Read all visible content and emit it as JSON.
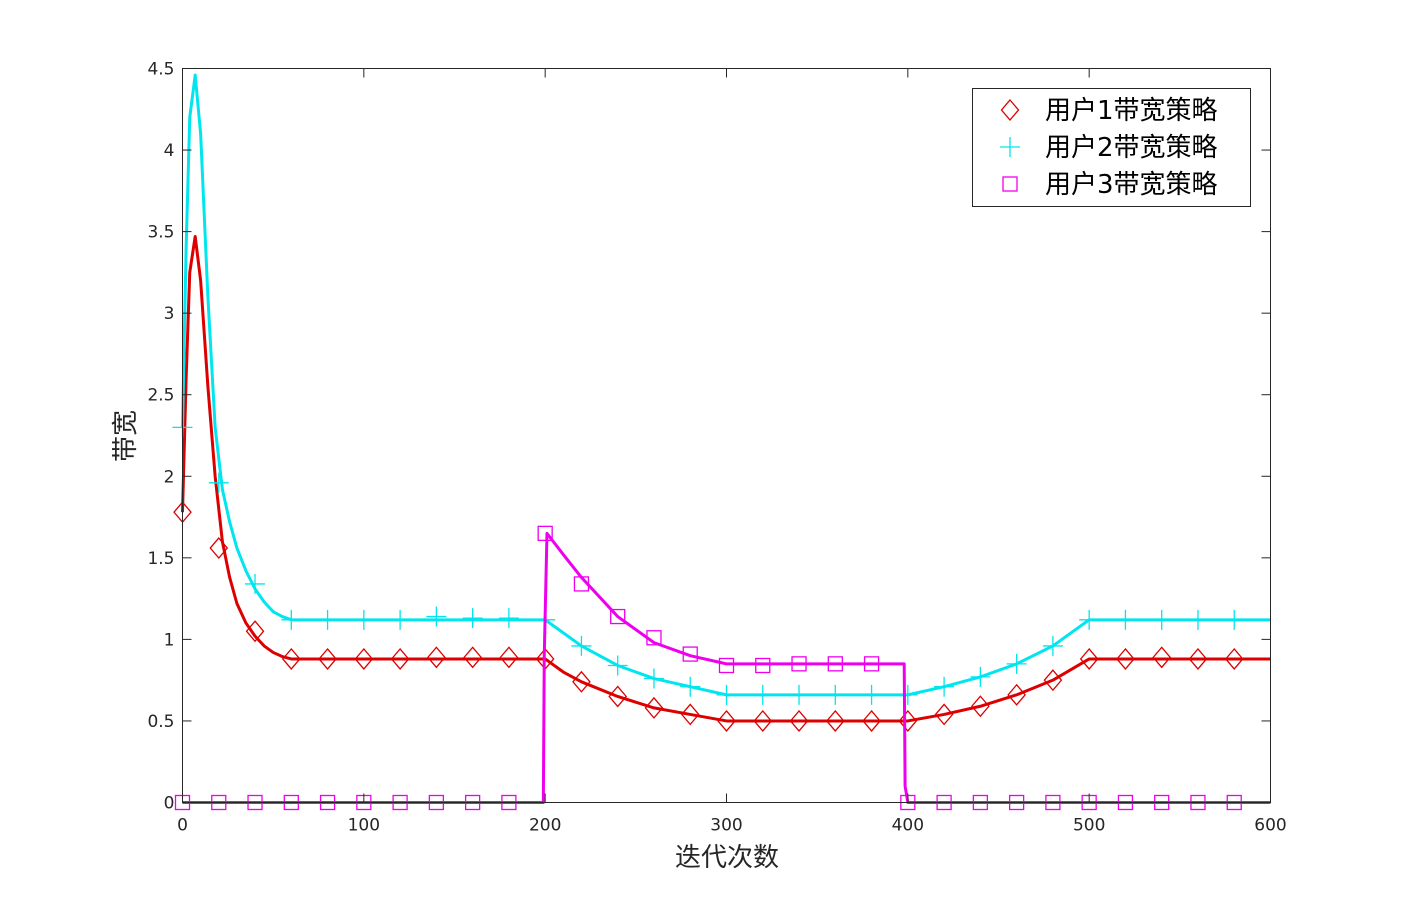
{
  "chart_data": {
    "type": "line",
    "title": "",
    "xlabel": "迭代次数",
    "ylabel": "带宽",
    "xlim": [
      0,
      600
    ],
    "ylim": [
      0,
      4.5
    ],
    "xticks": [
      0,
      100,
      200,
      300,
      400,
      500,
      600
    ],
    "yticks": [
      0,
      0.5,
      1,
      1.5,
      2,
      2.5,
      3,
      3.5,
      4,
      4.5
    ],
    "xtick_labels": [
      "0",
      "100",
      "200",
      "300",
      "400",
      "500",
      "600"
    ],
    "ytick_labels": [
      "0",
      "0.5",
      "1",
      "1.5",
      "2",
      "2.5",
      "3",
      "3.5",
      "4",
      "4.5"
    ],
    "grid": false,
    "legend_position": "top-right",
    "series": [
      {
        "name": "用户1带宽策略",
        "color": "#dd0000",
        "marker": "diamond",
        "x": [
          0,
          2,
          4,
          7,
          10,
          14,
          18,
          22,
          26,
          30,
          35,
          40,
          45,
          50,
          55,
          60,
          100,
          140,
          180,
          200,
          210,
          220,
          240,
          260,
          280,
          300,
          340,
          380,
          400,
          420,
          440,
          460,
          480,
          500,
          540,
          580,
          600
        ],
        "y": [
          1.78,
          2.6,
          3.25,
          3.47,
          3.2,
          2.55,
          2.0,
          1.6,
          1.38,
          1.22,
          1.1,
          1.02,
          0.96,
          0.92,
          0.895,
          0.88,
          0.88,
          0.88,
          0.88,
          0.88,
          0.8,
          0.74,
          0.65,
          0.58,
          0.54,
          0.5,
          0.5,
          0.5,
          0.5,
          0.54,
          0.59,
          0.66,
          0.75,
          0.88,
          0.88,
          0.88,
          0.88
        ],
        "marker_x": [
          0,
          20,
          40,
          60,
          80,
          100,
          120,
          140,
          160,
          180,
          200,
          220,
          240,
          260,
          280,
          300,
          320,
          340,
          360,
          380,
          400,
          420,
          440,
          460,
          480,
          500,
          520,
          540,
          560,
          580
        ],
        "marker_y": [
          1.78,
          1.56,
          1.05,
          0.88,
          0.88,
          0.88,
          0.88,
          0.89,
          0.89,
          0.89,
          0.88,
          0.74,
          0.65,
          0.58,
          0.54,
          0.5,
          0.5,
          0.5,
          0.5,
          0.5,
          0.5,
          0.54,
          0.59,
          0.66,
          0.75,
          0.88,
          0.88,
          0.89,
          0.88,
          0.88
        ]
      },
      {
        "name": "用户2带宽策略",
        "color": "#00e5ee",
        "marker": "plus",
        "x": [
          0,
          2,
          4,
          7,
          10,
          14,
          18,
          22,
          26,
          30,
          35,
          40,
          45,
          50,
          55,
          60,
          100,
          140,
          180,
          200,
          210,
          220,
          240,
          260,
          280,
          300,
          340,
          380,
          400,
          420,
          440,
          460,
          480,
          500,
          540,
          580,
          600
        ],
        "y": [
          2.3,
          3.4,
          4.2,
          4.46,
          4.1,
          3.1,
          2.3,
          1.92,
          1.72,
          1.56,
          1.42,
          1.31,
          1.23,
          1.17,
          1.14,
          1.12,
          1.12,
          1.12,
          1.12,
          1.12,
          1.04,
          0.96,
          0.84,
          0.76,
          0.71,
          0.66,
          0.66,
          0.66,
          0.66,
          0.71,
          0.77,
          0.85,
          0.96,
          1.12,
          1.12,
          1.12,
          1.12
        ],
        "marker_x": [
          0,
          20,
          40,
          60,
          80,
          100,
          120,
          140,
          160,
          180,
          200,
          220,
          240,
          260,
          280,
          300,
          320,
          340,
          360,
          380,
          400,
          420,
          440,
          460,
          480,
          500,
          520,
          540,
          560,
          580
        ],
        "marker_y": [
          2.3,
          1.96,
          1.34,
          1.12,
          1.12,
          1.12,
          1.12,
          1.14,
          1.13,
          1.13,
          1.12,
          0.96,
          0.84,
          0.76,
          0.71,
          0.66,
          0.66,
          0.66,
          0.66,
          0.66,
          0.66,
          0.71,
          0.77,
          0.85,
          0.96,
          1.12,
          1.12,
          1.12,
          1.12,
          1.12
        ]
      },
      {
        "name": "用户3带宽策略",
        "color": "#ee00ee",
        "marker": "square",
        "x": [
          0,
          199,
          199.5,
          201,
          210,
          220,
          240,
          260,
          280,
          300,
          340,
          380,
          398,
          398.5,
          400,
          600
        ],
        "y": [
          0,
          0,
          0.9,
          1.65,
          1.52,
          1.38,
          1.14,
          0.98,
          0.9,
          0.85,
          0.85,
          0.85,
          0.85,
          0.1,
          0,
          0
        ],
        "marker_x": [
          0,
          20,
          40,
          60,
          80,
          100,
          120,
          140,
          160,
          180,
          200,
          220,
          240,
          260,
          280,
          300,
          320,
          340,
          360,
          380,
          400,
          420,
          440,
          460,
          480,
          500,
          520,
          540,
          560,
          580
        ],
        "marker_y": [
          0,
          0,
          0,
          0,
          0,
          0,
          0,
          0,
          0,
          0,
          1.65,
          1.34,
          1.14,
          1.01,
          0.91,
          0.84,
          0.84,
          0.85,
          0.85,
          0.85,
          0,
          0,
          0,
          0,
          0,
          0,
          0,
          0,
          0,
          0
        ]
      }
    ]
  }
}
